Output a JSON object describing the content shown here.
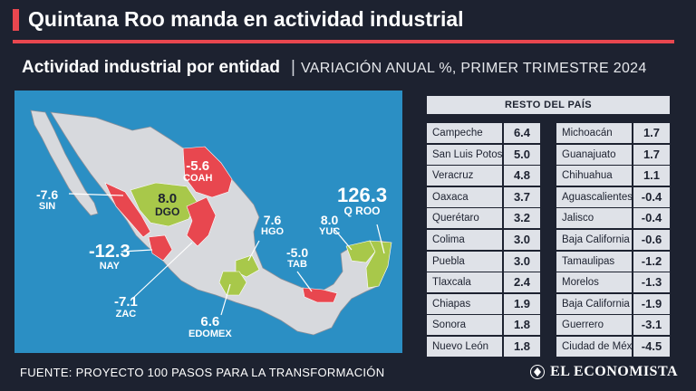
{
  "title": "Quintana Roo manda en actividad industrial",
  "subtitle": {
    "main": "Actividad industrial por entidad",
    "note": "VARIACIÓN ANUAL %, PRIMER TRIMESTRE 2024"
  },
  "map_labels": [
    {
      "id": "sin",
      "value": "-7.6",
      "name": "SIN"
    },
    {
      "id": "coah",
      "value": "-5.6",
      "name": "COAH"
    },
    {
      "id": "dgo",
      "value": "8.0",
      "name": "DGO"
    },
    {
      "id": "nay",
      "value": "-12.3",
      "name": "NAY"
    },
    {
      "id": "hgo",
      "value": "7.6",
      "name": "HGO"
    },
    {
      "id": "yuc",
      "value": "8.0",
      "name": "YUC"
    },
    {
      "id": "qroo",
      "value": "126.3",
      "name": "Q ROO"
    },
    {
      "id": "tab",
      "value": "-5.0",
      "name": "TAB"
    },
    {
      "id": "zac",
      "value": "-7.1",
      "name": "ZAC"
    },
    {
      "id": "edomex",
      "value": "6.6",
      "name": "EDOMEX"
    }
  ],
  "table": {
    "header": "RESTO DEL PAÍS",
    "left": [
      {
        "state": "Campeche",
        "value": "6.4"
      },
      {
        "state": "San Luis Potosí",
        "value": "5.0"
      },
      {
        "state": "Veracruz",
        "value": "4.8"
      },
      {
        "state": "Oaxaca",
        "value": "3.7"
      },
      {
        "state": "Querétaro",
        "value": "3.2"
      },
      {
        "state": "Colima",
        "value": "3.0"
      },
      {
        "state": "Puebla",
        "value": "3.0"
      },
      {
        "state": "Tlaxcala",
        "value": "2.4"
      },
      {
        "state": "Chiapas",
        "value": "1.9"
      },
      {
        "state": "Sonora",
        "value": "1.8"
      },
      {
        "state": "Nuevo León",
        "value": "1.8"
      }
    ],
    "right": [
      {
        "state": "Michoacán",
        "value": "1.7"
      },
      {
        "state": "Guanajuato",
        "value": "1.7"
      },
      {
        "state": "Chihuahua",
        "value": "1.1"
      },
      {
        "state": "Aguascalientes",
        "value": "-0.4"
      },
      {
        "state": "Jalisco",
        "value": "-0.4"
      },
      {
        "state": "Baja California Sur",
        "value": "-0.6"
      },
      {
        "state": "Tamaulipas",
        "value": "-1.2"
      },
      {
        "state": "Morelos",
        "value": "-1.3"
      },
      {
        "state": "Baja California",
        "value": "-1.9"
      },
      {
        "state": "Guerrero",
        "value": "-3.1"
      },
      {
        "state": "Ciudad de México",
        "value": "-4.5"
      }
    ]
  },
  "footer": "FUENTE: PROYECTO 100 PASOS PARA LA TRANSFORMACIÓN",
  "brand": "EL ECONOMISTA",
  "colors": {
    "negative": "#e8474f",
    "positive": "#a8c84a",
    "neutral": "#d7d9dd",
    "sea": "#2b8fc4"
  }
}
